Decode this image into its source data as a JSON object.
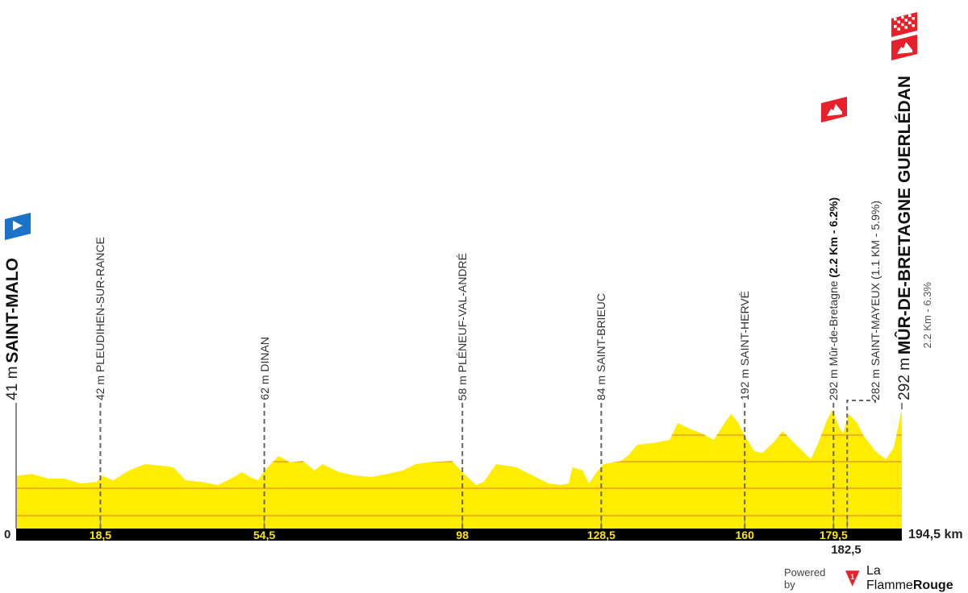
{
  "chart_data": {
    "type": "area",
    "title": "",
    "xlabel": "",
    "ylabel": "",
    "x_unit": "km",
    "y_unit": "m",
    "xlim": [
      0,
      194.5
    ],
    "profile": {
      "km": [
        0,
        3.5,
        7.1,
        10.6,
        14.2,
        17.7,
        18.8,
        21.3,
        24.8,
        28.3,
        31.9,
        34.5,
        37.2,
        40.7,
        44.3,
        47.8,
        49.6,
        51.4,
        53.1,
        54.6,
        57.6,
        60.2,
        62.9,
        65.5,
        67.3,
        70.9,
        74.4,
        77.9,
        81.5,
        85.0,
        87.7,
        90.3,
        95.7,
        98,
        101,
        102.7,
        105.4,
        109.8,
        113.4,
        116.9,
        119.6,
        121.3,
        122.2,
        124.4,
        125.8,
        127.5,
        129,
        132.9,
        134.6,
        136.4,
        139.9,
        143.5,
        145.3,
        147.9,
        150.6,
        153.2,
        155.9,
        157,
        158.5,
        160,
        162.1,
        163.9,
        166.5,
        168.3,
        170.9,
        174.5,
        176.3,
        178,
        179.3,
        180.7,
        181.6,
        182.8,
        184.6,
        186,
        188.7,
        191,
        192.7,
        194.5
      ],
      "elevation": [
        41,
        48,
        30,
        30,
        12,
        18,
        42,
        24,
        61,
        85,
        79,
        73,
        24,
        18,
        6,
        36,
        55,
        36,
        24,
        61,
        115,
        91,
        97,
        61,
        85,
        55,
        42,
        36,
        48,
        61,
        85,
        91,
        97,
        55,
        6,
        18,
        85,
        73,
        42,
        12,
        6,
        12,
        73,
        61,
        12,
        55,
        85,
        97,
        121,
        158,
        164,
        176,
        239,
        218,
        200,
        176,
        248,
        273,
        242,
        192,
        133,
        127,
        170,
        209,
        164,
        103,
        170,
        248,
        291,
        224,
        200,
        273,
        242,
        194,
        133,
        103,
        145,
        292
      ]
    },
    "km_ticks": [
      {
        "km": 0,
        "label": "0"
      },
      {
        "km": 18.5,
        "label": "18,5"
      },
      {
        "km": 54.5,
        "label": "54,5"
      },
      {
        "km": 98,
        "label": "98"
      },
      {
        "km": 128.5,
        "label": "128,5"
      },
      {
        "km": 160,
        "label": "160"
      },
      {
        "km": 179.5,
        "label": "179,5"
      },
      {
        "km": 182.5,
        "label": "182,5"
      },
      {
        "km": 194.5,
        "label": "194,5 km"
      }
    ],
    "places": [
      {
        "km": 0,
        "elevation": "41 m",
        "name": "SAINT-MALO",
        "type": "start"
      },
      {
        "km": 18.5,
        "elevation": "42 m",
        "name": "PLEUDIHEN-SUR-RANCE"
      },
      {
        "km": 54.5,
        "elevation": "62 m",
        "name": "DINAN"
      },
      {
        "km": 98,
        "elevation": "58 m",
        "name": "PLÉNEUF-VAL-ANDRÉ"
      },
      {
        "km": 128.5,
        "elevation": "84 m",
        "name": "SAINT-BRIEUC"
      },
      {
        "km": 160,
        "elevation": "192 m",
        "name": "SAINT-HERVÉ"
      },
      {
        "km": 179.5,
        "elevation": "292 m",
        "name": "Mûr-de-Bretagne",
        "climb": "(2.2 Km - 6.2%)",
        "type": "climb"
      },
      {
        "km": 182.5,
        "elevation": "282 m",
        "name": "SAINT-MAYEUX (1.1 KM - 5.9%)"
      },
      {
        "km": 194.5,
        "elevation": "292 m",
        "name": "MÛR-DE-BRETAGNE GUERLÉDAN",
        "climb": "2.2 Km - 6.3%",
        "type": "finish"
      }
    ],
    "colors": {
      "profile": "#ffed00",
      "gridline": "#f2b21a",
      "axis_bar": "#000000",
      "km_label": "#ffe600",
      "start_flag": "#1a73c9",
      "climb_icon": "#e8202a"
    }
  },
  "footer": {
    "powered_by": "Powered by",
    "brand_regular": "La Flamme",
    "brand_bold": "Rouge"
  }
}
